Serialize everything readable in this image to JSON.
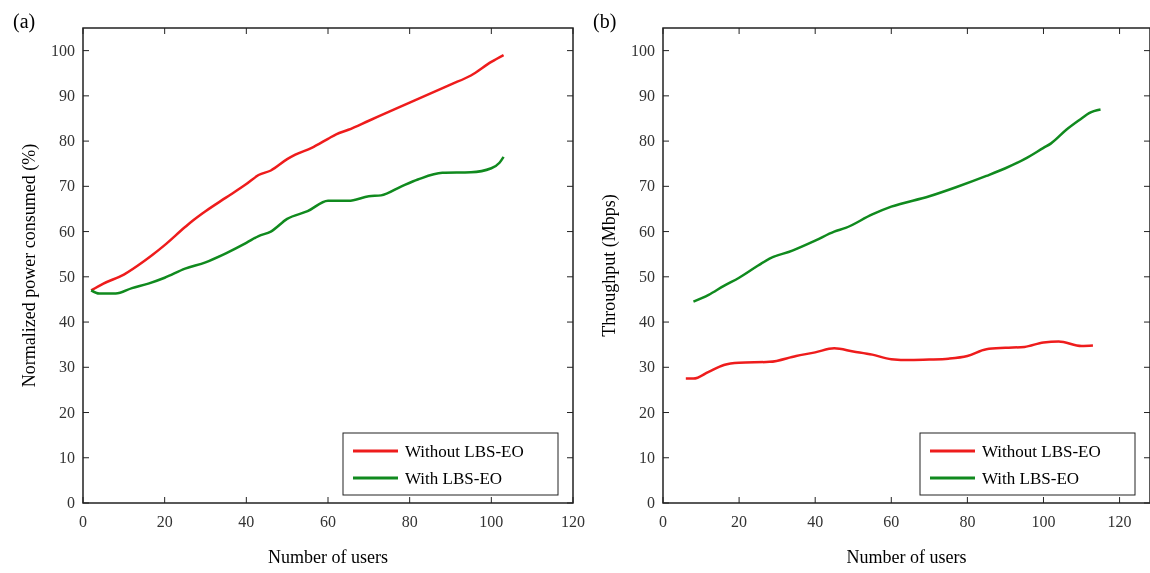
{
  "chart_data": [
    {
      "type": "line",
      "title": "(a)",
      "xlabel": "Number of users",
      "ylabel": "Normalized power consumed (%)",
      "xlim": [
        0,
        120
      ],
      "ylim": [
        0,
        105
      ],
      "xticks": [
        0,
        20,
        40,
        60,
        80,
        100,
        120
      ],
      "yticks": [
        0,
        10,
        20,
        30,
        40,
        50,
        60,
        70,
        80,
        90,
        100
      ],
      "legend": "bottom right",
      "grid": false,
      "series": [
        {
          "name": "Without LBS-EO",
          "color": "#ee1c1c",
          "x": [
            2,
            5,
            10,
            15,
            20,
            25,
            27,
            30,
            35,
            40,
            43,
            46,
            50,
            52,
            56,
            60,
            62,
            65,
            70,
            75,
            80,
            85,
            90,
            95,
            100,
            103
          ],
          "values": [
            47,
            48.5,
            50.5,
            53.5,
            57,
            61,
            62.5,
            64.5,
            67.5,
            70.5,
            72.5,
            73.5,
            76,
            77,
            78.5,
            80.5,
            81.5,
            82.5,
            84.5,
            86.5,
            88.5,
            90.5,
            92.5,
            94.5,
            97.5,
            99
          ]
        },
        {
          "name": "With LBS-EO",
          "color": "#108a1e",
          "x": [
            2,
            4,
            8,
            12,
            16,
            20,
            25,
            30,
            35,
            40,
            43,
            46,
            50,
            55,
            60,
            65,
            70,
            73,
            78,
            82,
            88,
            95,
            100,
            102,
            103
          ],
          "values": [
            47,
            46.3,
            46.3,
            47.5,
            48.5,
            49.8,
            51.8,
            53.2,
            55.2,
            57.5,
            59,
            60,
            62.8,
            64.5,
            66.8,
            66.8,
            67.8,
            68,
            70,
            71.5,
            73,
            73.1,
            74,
            75.2,
            76.5
          ]
        }
      ]
    },
    {
      "type": "line",
      "title": "(b)",
      "xlabel": "Number of users",
      "ylabel": "Throughput (Mbps)",
      "xlim": [
        0,
        128
      ],
      "ylim": [
        0,
        105
      ],
      "xticks": [
        0,
        20,
        40,
        60,
        80,
        100,
        120
      ],
      "yticks": [
        0,
        10,
        20,
        30,
        40,
        50,
        60,
        70,
        80,
        90,
        100
      ],
      "legend": "bottom right",
      "grid": false,
      "series": [
        {
          "name": "Without LBS-EO",
          "color": "#ee1c1c",
          "x": [
            6,
            8,
            12,
            16,
            20,
            28,
            35,
            40,
            45,
            50,
            55,
            60,
            65,
            70,
            75,
            80,
            85,
            90,
            95,
            100,
            104,
            110,
            113
          ],
          "values": [
            27.5,
            27.5,
            29,
            30.5,
            31,
            31.2,
            32.5,
            33.3,
            34.2,
            33.5,
            32.8,
            31.8,
            31.6,
            31.7,
            31.9,
            32.5,
            34,
            34.3,
            34.5,
            35.5,
            35.7,
            34.7,
            34.8
          ]
        },
        {
          "name": "With LBS-EO",
          "color": "#108a1e",
          "x": [
            8,
            12,
            16,
            20,
            25,
            28,
            34,
            40,
            45,
            48,
            55,
            60,
            70,
            77,
            85,
            90,
            95,
            100,
            102,
            106,
            110,
            112,
            115
          ],
          "values": [
            44.5,
            46,
            48,
            49.8,
            52.5,
            54,
            55.8,
            58,
            60,
            60.8,
            63.8,
            65.5,
            67.8,
            69.8,
            72.3,
            74,
            76,
            78.5,
            79.5,
            82.5,
            85,
            86.2,
            87
          ]
        }
      ]
    }
  ]
}
